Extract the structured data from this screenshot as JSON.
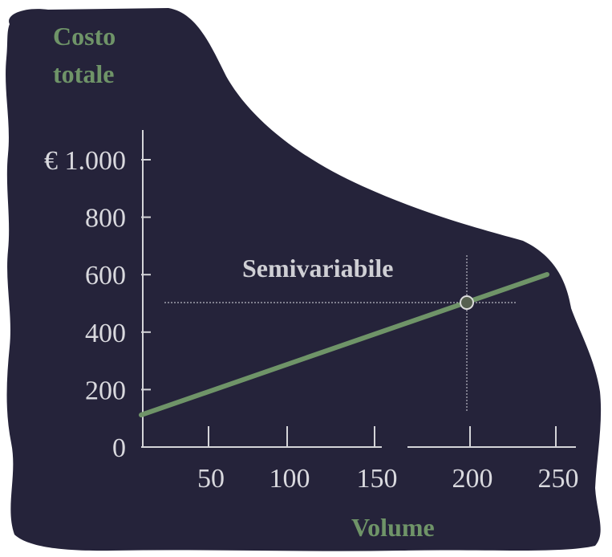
{
  "chart_data": {
    "type": "line",
    "title": "",
    "xlabel": "Volume",
    "ylabel": "Costo totale",
    "ylabel_lines": [
      "Costo",
      "totale"
    ],
    "xlim": [
      0,
      250
    ],
    "ylim": [
      0,
      1000
    ],
    "x_ticks": [
      50,
      100,
      150,
      200,
      250
    ],
    "x_tick_labels": [
      "50",
      "100",
      "150",
      "200",
      "250"
    ],
    "y_ticks": [
      0,
      200,
      400,
      600,
      800,
      1000
    ],
    "y_tick_labels": [
      "0",
      "200",
      "400",
      "600",
      "800",
      "€ 1.000"
    ],
    "grid": false,
    "series": [
      {
        "x": [
          0,
          245
        ],
        "y": [
          110,
          600
        ],
        "color": "#6f9468"
      }
    ],
    "highlight_point": {
      "x": 200,
      "y": 500,
      "label": "Semivariabile"
    },
    "colors": {
      "background": "#25233a",
      "line": "#6f9468",
      "axis": "#d4d4d8",
      "text": "#d9d9de",
      "title": "#6f9468"
    }
  }
}
